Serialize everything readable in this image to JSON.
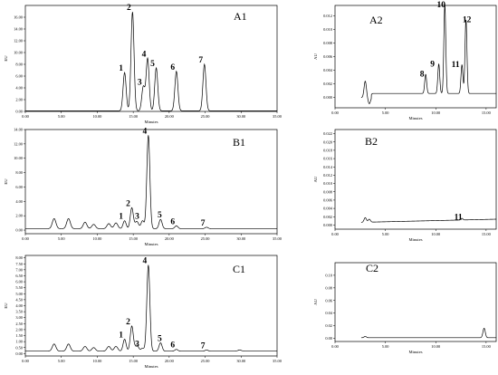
{
  "chart_data": [
    {
      "id": "A1",
      "type": "line",
      "panel_label": "A1",
      "xlabel": "Minutes",
      "ylabel": "EU",
      "xlim": [
        0,
        35
      ],
      "ylim": [
        0,
        18
      ],
      "xticks": [
        "0.00",
        "5.00",
        "10.00",
        "15.00",
        "20.00",
        "25.00",
        "30.00",
        "35.00"
      ],
      "yticks": [
        "0.00",
        "2.00",
        "4.00",
        "6.00",
        "8.00",
        "10.00",
        "12.00",
        "14.00",
        "16.00"
      ],
      "ytick_values": [
        0,
        2,
        4,
        6,
        8,
        10,
        12,
        14,
        16
      ],
      "baseline": 0.1,
      "peaks": [
        {
          "label": "1",
          "x": 13.8,
          "y": 6.6
        },
        {
          "label": "2",
          "x": 14.9,
          "y": 16.9
        },
        {
          "label": "3",
          "x": 16.4,
          "y": 4.2
        },
        {
          "label": "4",
          "x": 17.0,
          "y": 9.0
        },
        {
          "label": "5",
          "x": 18.2,
          "y": 7.4
        },
        {
          "label": "6",
          "x": 21.0,
          "y": 6.8
        },
        {
          "label": "7",
          "x": 24.9,
          "y": 8.0
        }
      ],
      "noise": []
    },
    {
      "id": "A2",
      "type": "line",
      "panel_label": "A2",
      "xlabel": "Minutes",
      "ylabel": "AU",
      "xlim": [
        0,
        16
      ],
      "ylim": [
        -0.0015,
        0.0135
      ],
      "xticks": [
        "0.00",
        "5.00",
        "10.00",
        "15.00"
      ],
      "yticks": [
        "0.000",
        "0.002",
        "0.004",
        "0.006",
        "0.008",
        "0.010",
        "0.012"
      ],
      "ytick_values": [
        0,
        0.002,
        0.004,
        0.006,
        0.008,
        0.01,
        0.012
      ],
      "baseline": 0.0,
      "peaks": [
        {
          "label": "8",
          "x": 9.0,
          "y": 0.0028
        },
        {
          "label": "9",
          "x": 10.3,
          "y": 0.0043
        },
        {
          "label": "10",
          "x": 10.9,
          "y": 0.013
        },
        {
          "label": "11",
          "x": 12.6,
          "y": 0.0042
        },
        {
          "label": "12",
          "x": 13.0,
          "y": 0.0108
        }
      ],
      "noise": [
        {
          "x": 3.0,
          "y": 0.0024
        },
        {
          "x": 3.4,
          "y": -0.0009
        }
      ]
    },
    {
      "id": "B1",
      "type": "line",
      "panel_label": "B1",
      "xlabel": "Minutes",
      "ylabel": "EU",
      "xlim": [
        0,
        35
      ],
      "ylim": [
        -0.5,
        14
      ],
      "xticks": [
        "0.00",
        "5.00",
        "10.00",
        "15.00",
        "20.00",
        "25.00",
        "30.00",
        "35.00"
      ],
      "yticks": [
        "0.00",
        "2.00",
        "4.00",
        "6.00",
        "8.00",
        "10.00",
        "12.00",
        "14.00"
      ],
      "ytick_values": [
        0,
        2,
        4,
        6,
        8,
        10,
        12,
        14
      ],
      "baseline": 0.2,
      "peaks": [
        {
          "label": "1",
          "x": 13.8,
          "y": 1.3
        },
        {
          "label": "2",
          "x": 14.8,
          "y": 3.1
        },
        {
          "label": "3",
          "x": 16.3,
          "y": 1.3
        },
        {
          "label": "4",
          "x": 17.1,
          "y": 13.2
        },
        {
          "label": "5",
          "x": 18.8,
          "y": 1.5
        },
        {
          "label": "6",
          "x": 21.0,
          "y": 0.6
        },
        {
          "label": "7",
          "x": 25.2,
          "y": 0.4
        }
      ],
      "noise": [
        {
          "x": 4.0,
          "y": 1.6
        },
        {
          "x": 6.0,
          "y": 1.6
        },
        {
          "x": 8.3,
          "y": 1.1
        },
        {
          "x": 9.5,
          "y": 0.8
        },
        {
          "x": 11.6,
          "y": 0.9
        },
        {
          "x": 12.6,
          "y": 1.0
        },
        {
          "x": 15.5,
          "y": 1.2
        }
      ]
    },
    {
      "id": "B2",
      "type": "line",
      "panel_label": "B2",
      "xlabel": "Minutes",
      "ylabel": "AU",
      "xlim": [
        0,
        16
      ],
      "ylim": [
        -0.001,
        0.023
      ],
      "xticks": [
        "0.00",
        "5.00",
        "10.00",
        "15.00"
      ],
      "yticks": [
        "0.000",
        "0.002",
        "0.004",
        "0.006",
        "0.008",
        "0.010",
        "0.012",
        "0.014",
        "0.016",
        "0.018",
        "0.020",
        "0.022"
      ],
      "ytick_values": [
        0,
        0.002,
        0.004,
        0.006,
        0.008,
        0.01,
        0.012,
        0.014,
        0.016,
        0.018,
        0.02,
        0.022
      ],
      "baseline": 0.0005,
      "peaks": [
        {
          "label": "11",
          "x": 12.6,
          "y": 0.0009
        }
      ],
      "noise": [
        {
          "x": 3.0,
          "y": 0.0016
        },
        {
          "x": 3.4,
          "y": 0.0012
        }
      ]
    },
    {
      "id": "C1",
      "type": "line",
      "panel_label": "C1",
      "xlabel": "Minutes",
      "ylabel": "EU",
      "xlim": [
        0,
        35
      ],
      "ylim": [
        -0.2,
        8.2
      ],
      "xticks": [
        "0.00",
        "5.00",
        "10.00",
        "15.00",
        "20.00",
        "25.00",
        "30.00",
        "35.00"
      ],
      "yticks": [
        "0.00",
        "0.50",
        "1.00",
        "1.50",
        "2.00",
        "2.50",
        "3.00",
        "3.50",
        "4.00",
        "4.50",
        "5.00",
        "5.50",
        "6.00",
        "6.50",
        "7.00",
        "7.50",
        "8.00"
      ],
      "ytick_values": [
        0,
        0.5,
        1,
        1.5,
        2,
        2.5,
        3,
        3.5,
        4,
        4.5,
        5,
        5.5,
        6,
        6.5,
        7,
        7.5,
        8
      ],
      "baseline": 0.2,
      "peaks": [
        {
          "label": "1",
          "x": 13.8,
          "y": 1.2
        },
        {
          "label": "2",
          "x": 14.8,
          "y": 2.3
        },
        {
          "label": "3",
          "x": 16.3,
          "y": 0.45
        },
        {
          "label": "4",
          "x": 17.1,
          "y": 7.4
        },
        {
          "label": "5",
          "x": 18.8,
          "y": 0.9
        },
        {
          "label": "6",
          "x": 21.0,
          "y": 0.35
        },
        {
          "label": "7",
          "x": 25.2,
          "y": 0.3
        }
      ],
      "noise": [
        {
          "x": 4.0,
          "y": 0.8
        },
        {
          "x": 6.0,
          "y": 0.8
        },
        {
          "x": 8.3,
          "y": 0.6
        },
        {
          "x": 9.5,
          "y": 0.5
        },
        {
          "x": 11.6,
          "y": 0.6
        },
        {
          "x": 12.6,
          "y": 0.6
        },
        {
          "x": 15.5,
          "y": 0.7
        },
        {
          "x": 29.8,
          "y": 0.3
        }
      ]
    },
    {
      "id": "C2",
      "type": "line",
      "panel_label": "C2",
      "xlabel": "Minutes",
      "ylabel": "AU",
      "xlim": [
        0,
        16
      ],
      "ylim": [
        -0.005,
        0.12
      ],
      "xticks": [
        "0.00",
        "5.00",
        "10.00",
        "15.00"
      ],
      "yticks": [
        "0.00",
        "0.02",
        "0.04",
        "0.06",
        "0.08",
        "0.10"
      ],
      "ytick_values": [
        0,
        0.02,
        0.04,
        0.06,
        0.08,
        0.1
      ],
      "baseline": 0.001,
      "peaks": [],
      "noise": [
        {
          "x": 3.0,
          "y": 0.003
        },
        {
          "x": 14.8,
          "y": 0.016
        }
      ]
    }
  ]
}
